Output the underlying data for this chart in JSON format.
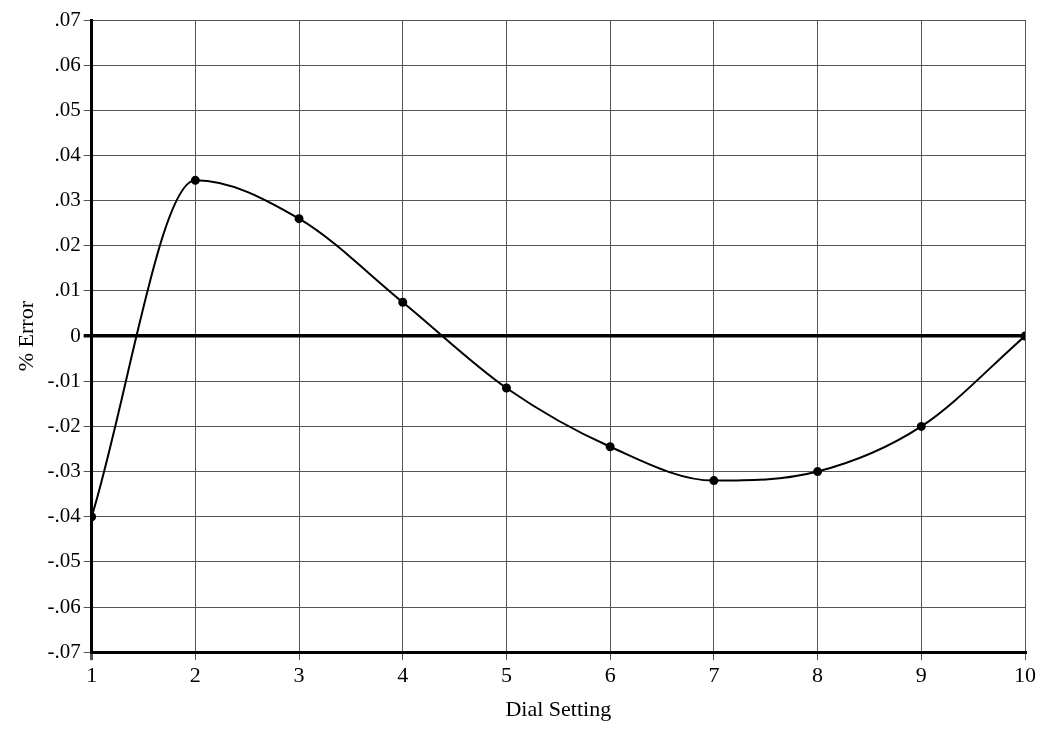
{
  "chart_data": {
    "type": "line",
    "xlabel": "Dial Setting",
    "ylabel": "% Error",
    "x": [
      1,
      2,
      3,
      4,
      5,
      6,
      7,
      8,
      9,
      10
    ],
    "series": [
      {
        "color": "#000000",
        "values": [
          -0.04,
          0.0345,
          0.026,
          0.0075,
          -0.0115,
          -0.0245,
          -0.032,
          -0.03,
          -0.02,
          0
        ]
      }
    ],
    "xlim": [
      1,
      10
    ],
    "xticks": [
      1,
      2,
      3,
      4,
      5,
      6,
      7,
      8,
      9,
      10
    ],
    "ylim": [
      -0.07,
      0.07
    ],
    "yticks": [
      {
        "value": -0.07,
        "label": "-.07"
      },
      {
        "value": -0.06,
        "label": "-.06"
      },
      {
        "value": -0.05,
        "label": "-.05"
      },
      {
        "value": -0.04,
        "label": "-.04"
      },
      {
        "value": -0.03,
        "label": "-.03"
      },
      {
        "value": -0.02,
        "label": "-.02"
      },
      {
        "value": -0.01,
        "label": "-.01"
      },
      {
        "value": 0,
        "label": "0"
      },
      {
        "value": 0.01,
        "label": ".01"
      },
      {
        "value": 0.02,
        "label": ".02"
      },
      {
        "value": 0.03,
        "label": ".03"
      },
      {
        "value": 0.04,
        "label": ".04"
      },
      {
        "value": 0.05,
        "label": ".05"
      },
      {
        "value": 0.06,
        "label": ".06"
      },
      {
        "value": 0.07,
        "label": ".07"
      }
    ],
    "grid": true,
    "legend": false,
    "marker": "circle",
    "line_style": "solid"
  }
}
